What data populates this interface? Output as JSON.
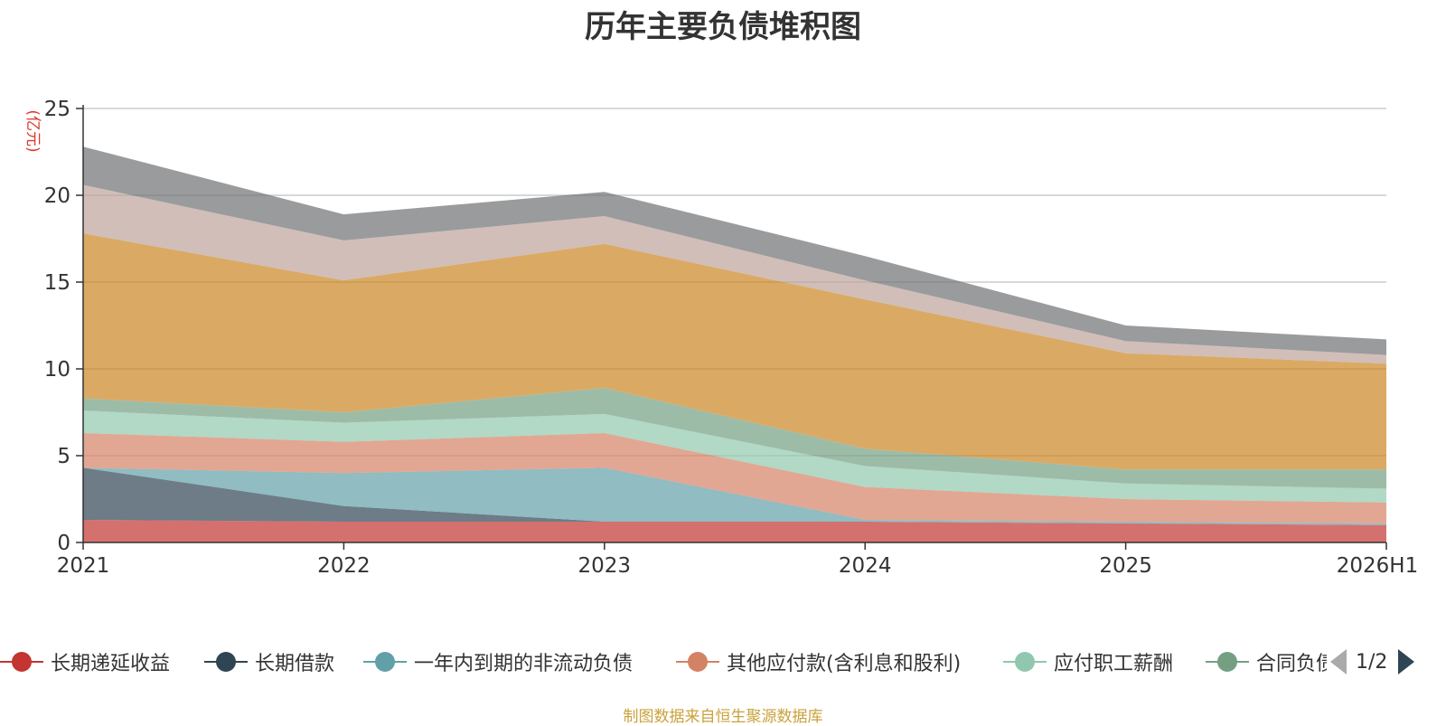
{
  "chart_data": {
    "type": "area",
    "stacked": true,
    "title": "历年主要负债堆积图",
    "ylabel": "(亿元)",
    "ylim": [
      0,
      25
    ],
    "yticks": [
      0,
      5,
      10,
      15,
      20,
      25
    ],
    "categories": [
      "2021",
      "2022",
      "2023",
      "2024",
      "2025",
      "2026H1"
    ],
    "grid": true,
    "series": [
      {
        "name": "长期递延收益",
        "color": "#c23531",
        "values": [
          1.3,
          1.2,
          1.2,
          1.2,
          1.1,
          1.0
        ]
      },
      {
        "name": "长期借款",
        "color": "#2f4554",
        "values": [
          3.0,
          0.9,
          0.0,
          0.0,
          0.0,
          0.0
        ]
      },
      {
        "name": "一年内到期的非流动负债",
        "color": "#61a0a8",
        "values": [
          0.0,
          1.9,
          3.1,
          0.1,
          0.1,
          0.1
        ]
      },
      {
        "name": "其他应付款(含利息和股利)",
        "color": "#d48265",
        "values": [
          2.0,
          1.8,
          2.0,
          1.9,
          1.3,
          1.2
        ]
      },
      {
        "name": "应付职工薪酬",
        "color": "#91c7ae",
        "values": [
          1.3,
          1.1,
          1.1,
          1.2,
          0.9,
          0.8
        ]
      },
      {
        "name": "合同负债",
        "color": "#749f83",
        "values": [
          0.7,
          0.6,
          1.5,
          1.0,
          0.8,
          1.1
        ]
      },
      {
        "name": "",
        "color": "#ca8622",
        "values": [
          9.5,
          7.6,
          8.3,
          8.6,
          6.7,
          6.1
        ]
      },
      {
        "name": "",
        "color": "#bda29a",
        "values": [
          2.8,
          2.3,
          1.6,
          1.1,
          0.7,
          0.5
        ]
      },
      {
        "name": "",
        "color": "#6e7074",
        "values": [
          2.2,
          1.5,
          1.4,
          1.4,
          0.9,
          0.9
        ]
      }
    ]
  },
  "legend": {
    "page_text": "1/2"
  },
  "source_text": "制图数据来自恒生聚源数据库"
}
